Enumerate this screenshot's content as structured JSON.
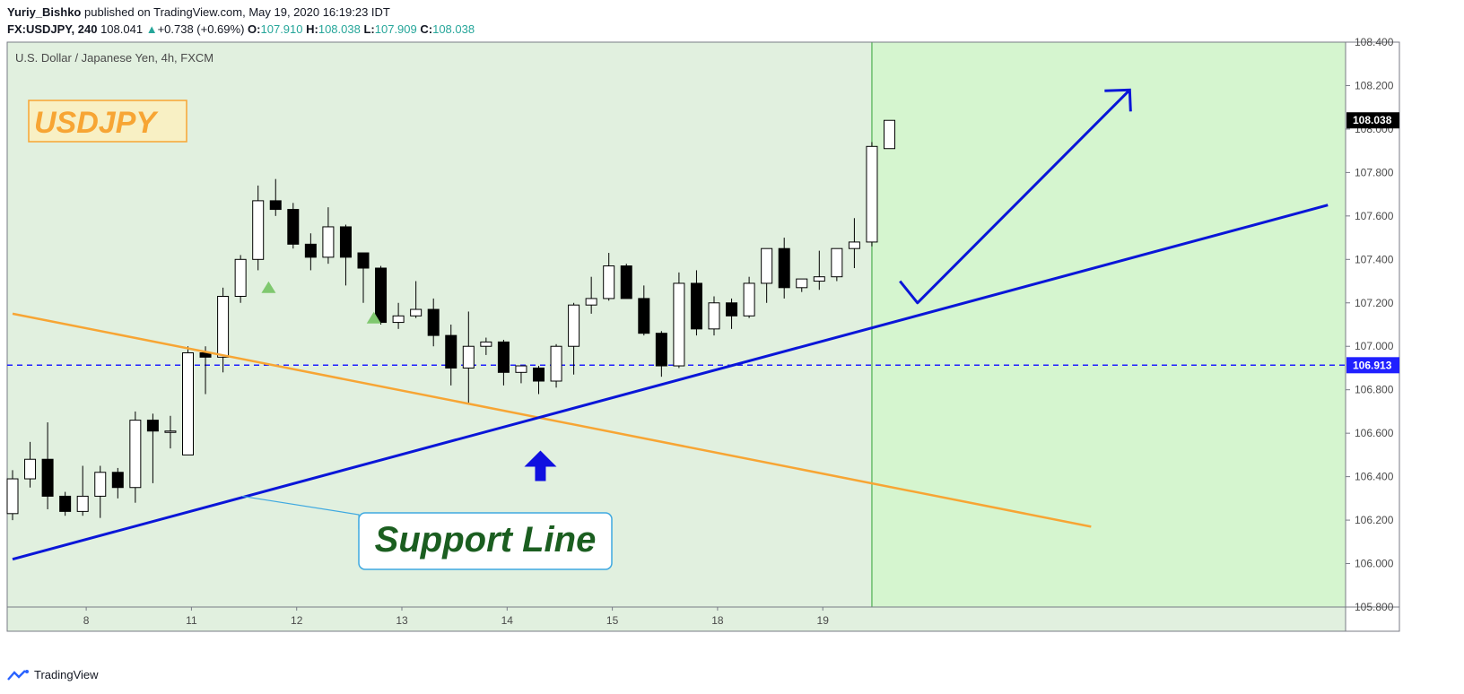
{
  "header": {
    "author": "Yuriy_Bishko",
    "published_text": "published on TradingView.com, May 19, 2020 16:19:23 IDT",
    "symbol": "FX:USDJPY, 240",
    "last": "108.041",
    "change": "+0.738 (+0.69%)",
    "open_label": "O:",
    "open": "107.910",
    "high_label": "H:",
    "high": "108.038",
    "low_label": "L:",
    "low": "107.909",
    "close_label": "C:",
    "close": "108.038"
  },
  "footer": {
    "brand": "TradingView"
  },
  "chart_data": {
    "type": "candlestick",
    "title": "U.S. Dollar / Japanese Yen, 4h, FXCM",
    "ylim": [
      105.8,
      108.4
    ],
    "y_ticks": [
      105.8,
      106.0,
      106.2,
      106.4,
      106.6,
      106.8,
      107.0,
      107.2,
      107.4,
      107.6,
      107.8,
      108.0,
      108.2,
      108.4
    ],
    "y_tick_labels": [
      "105.800",
      "106.000",
      "106.200",
      "106.400",
      "106.600",
      "106.800",
      "107.000",
      "107.200",
      "107.400",
      "107.600",
      "107.800",
      "108.000",
      "108.200",
      "108.400"
    ],
    "x_tick_labels": [
      {
        "label": "8",
        "bar": 4.2
      },
      {
        "label": "11",
        "bar": 10.2
      },
      {
        "label": "12",
        "bar": 16.2
      },
      {
        "label": "13",
        "bar": 22.2
      },
      {
        "label": "14",
        "bar": 28.2
      },
      {
        "label": "15",
        "bar": 34.2
      },
      {
        "label": "18",
        "bar": 40.2
      },
      {
        "label": "19",
        "bar": 46.2
      }
    ],
    "last_price_label": "108.038",
    "horizontal_level": {
      "value": 106.913,
      "label": "106.913",
      "color": "#2020ff"
    },
    "candles": [
      {
        "o": 106.23,
        "h": 106.43,
        "l": 106.2,
        "c": 106.39
      },
      {
        "o": 106.39,
        "h": 106.56,
        "l": 106.35,
        "c": 106.48
      },
      {
        "o": 106.48,
        "h": 106.65,
        "l": 106.25,
        "c": 106.31
      },
      {
        "o": 106.31,
        "h": 106.33,
        "l": 106.22,
        "c": 106.24
      },
      {
        "o": 106.24,
        "h": 106.45,
        "l": 106.22,
        "c": 106.31
      },
      {
        "o": 106.31,
        "h": 106.45,
        "l": 106.21,
        "c": 106.42
      },
      {
        "o": 106.42,
        "h": 106.44,
        "l": 106.3,
        "c": 106.35
      },
      {
        "o": 106.35,
        "h": 106.7,
        "l": 106.28,
        "c": 106.66
      },
      {
        "o": 106.66,
        "h": 106.69,
        "l": 106.37,
        "c": 106.61
      },
      {
        "o": 106.61,
        "h": 106.68,
        "l": 106.53,
        "c": 106.61
      },
      {
        "o": 106.5,
        "h": 107.0,
        "l": 106.5,
        "c": 106.97
      },
      {
        "o": 106.97,
        "h": 107.0,
        "l": 106.78,
        "c": 106.95
      },
      {
        "o": 106.95,
        "h": 107.27,
        "l": 106.88,
        "c": 107.23
      },
      {
        "o": 107.23,
        "h": 107.42,
        "l": 107.2,
        "c": 107.4
      },
      {
        "o": 107.4,
        "h": 107.74,
        "l": 107.35,
        "c": 107.67
      },
      {
        "o": 107.67,
        "h": 107.77,
        "l": 107.6,
        "c": 107.63
      },
      {
        "o": 107.63,
        "h": 107.66,
        "l": 107.45,
        "c": 107.47
      },
      {
        "o": 107.47,
        "h": 107.52,
        "l": 107.35,
        "c": 107.41
      },
      {
        "o": 107.41,
        "h": 107.64,
        "l": 107.38,
        "c": 107.55
      },
      {
        "o": 107.55,
        "h": 107.56,
        "l": 107.28,
        "c": 107.41
      },
      {
        "o": 107.43,
        "h": 107.43,
        "l": 107.2,
        "c": 107.36
      },
      {
        "o": 107.36,
        "h": 107.37,
        "l": 107.1,
        "c": 107.11
      },
      {
        "o": 107.11,
        "h": 107.2,
        "l": 107.08,
        "c": 107.14
      },
      {
        "o": 107.14,
        "h": 107.3,
        "l": 107.13,
        "c": 107.17
      },
      {
        "o": 107.17,
        "h": 107.22,
        "l": 107.0,
        "c": 107.05
      },
      {
        "o": 107.05,
        "h": 107.1,
        "l": 106.82,
        "c": 106.9
      },
      {
        "o": 106.9,
        "h": 107.16,
        "l": 106.74,
        "c": 107.0
      },
      {
        "o": 107.0,
        "h": 107.04,
        "l": 106.96,
        "c": 107.02
      },
      {
        "o": 107.02,
        "h": 107.03,
        "l": 106.82,
        "c": 106.88
      },
      {
        "o": 106.88,
        "h": 106.91,
        "l": 106.83,
        "c": 106.91
      },
      {
        "o": 106.9,
        "h": 106.91,
        "l": 106.78,
        "c": 106.84
      },
      {
        "o": 106.84,
        "h": 107.01,
        "l": 106.81,
        "c": 107.0
      },
      {
        "o": 107.0,
        "h": 107.2,
        "l": 106.87,
        "c": 107.19
      },
      {
        "o": 107.19,
        "h": 107.32,
        "l": 107.15,
        "c": 107.22
      },
      {
        "o": 107.22,
        "h": 107.43,
        "l": 107.21,
        "c": 107.37
      },
      {
        "o": 107.37,
        "h": 107.38,
        "l": 107.22,
        "c": 107.22
      },
      {
        "o": 107.22,
        "h": 107.28,
        "l": 107.05,
        "c": 107.06
      },
      {
        "o": 107.06,
        "h": 107.07,
        "l": 106.86,
        "c": 106.91
      },
      {
        "o": 106.91,
        "h": 107.34,
        "l": 106.9,
        "c": 107.29
      },
      {
        "o": 107.29,
        "h": 107.35,
        "l": 107.05,
        "c": 107.08
      },
      {
        "o": 107.08,
        "h": 107.23,
        "l": 107.05,
        "c": 107.2
      },
      {
        "o": 107.2,
        "h": 107.22,
        "l": 107.08,
        "c": 107.14
      },
      {
        "o": 107.14,
        "h": 107.32,
        "l": 107.13,
        "c": 107.29
      },
      {
        "o": 107.29,
        "h": 107.45,
        "l": 107.2,
        "c": 107.45
      },
      {
        "o": 107.45,
        "h": 107.5,
        "l": 107.22,
        "c": 107.27
      },
      {
        "o": 107.27,
        "h": 107.31,
        "l": 107.25,
        "c": 107.31
      },
      {
        "o": 107.3,
        "h": 107.44,
        "l": 107.26,
        "c": 107.32
      },
      {
        "o": 107.32,
        "h": 107.45,
        "l": 107.3,
        "c": 107.45
      },
      {
        "o": 107.45,
        "h": 107.59,
        "l": 107.36,
        "c": 107.48
      },
      {
        "o": 107.48,
        "h": 107.94,
        "l": 107.46,
        "c": 107.92
      },
      {
        "o": 107.91,
        "h": 108.04,
        "l": 107.91,
        "c": 108.04
      }
    ],
    "markers": [
      {
        "bar": 14.6,
        "value": 107.27,
        "shape": "triangle-up",
        "color": "#7fc86f"
      },
      {
        "bar": 20.6,
        "value": 107.13,
        "shape": "triangle-up",
        "color": "#7fc86f"
      }
    ],
    "annotations": {
      "label_box": {
        "text": "USDJPY",
        "text_color": "#f7a534",
        "fill": "#f8f0c4",
        "border": "#f7a534"
      },
      "callout": {
        "text": "Support Line",
        "text_color": "#1b5e20",
        "border": "#3fa9e0"
      },
      "up_arrow": {
        "color": "#1010e0"
      },
      "support_line": {
        "color": "#0a16d8",
        "from": {
          "bar": 0.0,
          "value": 106.02
        },
        "to": {
          "bar": 75.0,
          "value": 107.65
        }
      },
      "resistance_line": {
        "color": "#f7a534",
        "from": {
          "bar": 0.0,
          "value": 107.15
        },
        "to": {
          "bar": 61.5,
          "value": 106.17
        }
      },
      "projection_path": {
        "color": "#0a16d8",
        "points": [
          {
            "bar": 50.6,
            "value": 107.3
          },
          {
            "bar": 51.6,
            "value": 107.2
          },
          {
            "bar": 63.7,
            "value": 108.18
          }
        ]
      },
      "forecast_zone": {
        "start_bar": 49.0,
        "fill": "#d5f5cf",
        "border": "#4caf50"
      },
      "chart_bg": "#e1f0df"
    }
  }
}
